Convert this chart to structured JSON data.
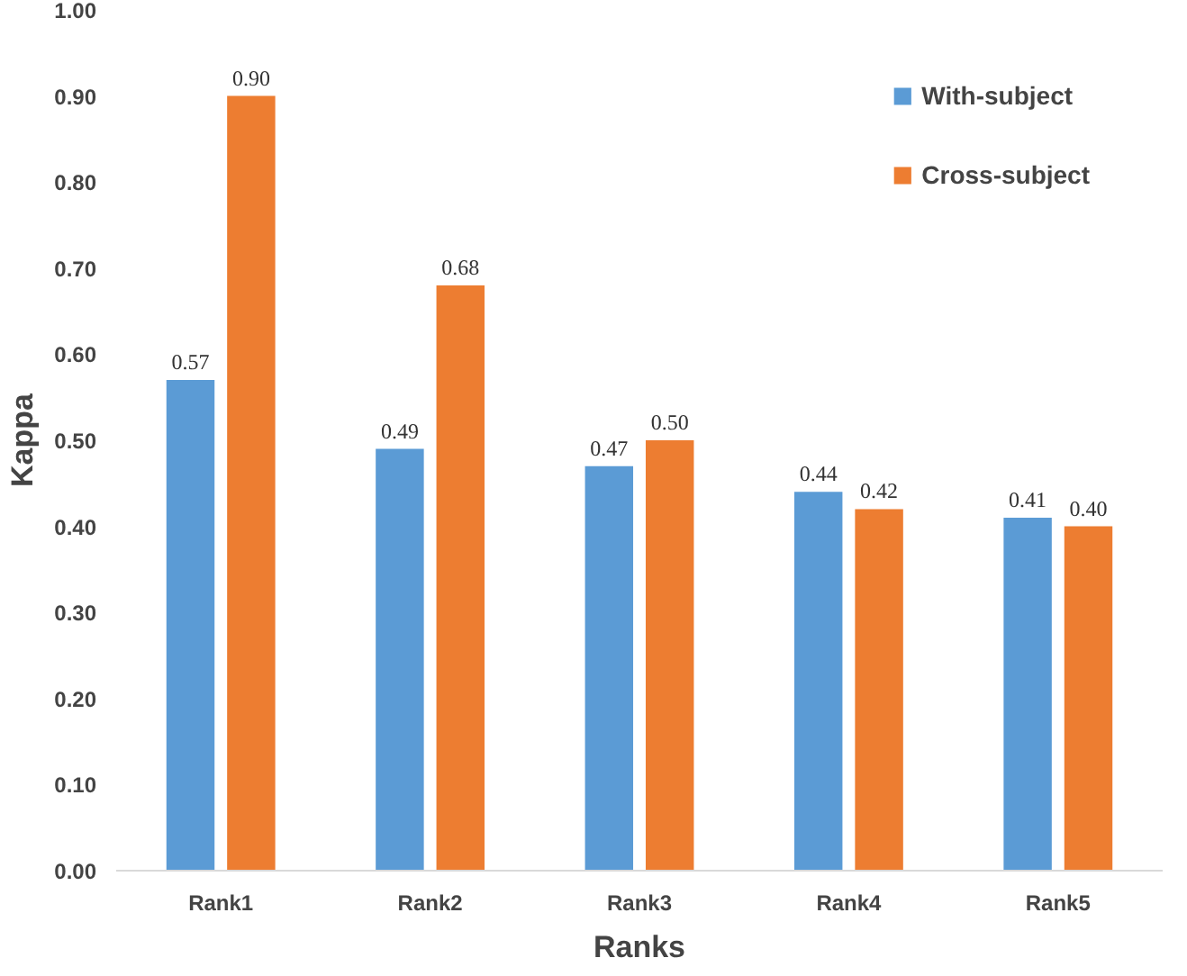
{
  "chart_data": {
    "type": "bar",
    "xlabel": "Ranks",
    "ylabel": "Kappa",
    "categories": [
      "Rank1",
      "Rank2",
      "Rank3",
      "Rank4",
      "Rank5"
    ],
    "series": [
      {
        "name": "With-subject",
        "color": "#5b9bd5",
        "values": [
          0.57,
          0.49,
          0.47,
          0.44,
          0.41
        ],
        "value_labels": [
          "0.57",
          "0.49",
          "0.47",
          "0.44",
          "0.41"
        ]
      },
      {
        "name": "Cross-subject",
        "color": "#ed7d31",
        "values": [
          0.9,
          0.68,
          0.5,
          0.42,
          0.4
        ],
        "value_labels": [
          "0.90",
          "0.68",
          "0.50",
          "0.42",
          "0.40"
        ]
      }
    ],
    "ylim": [
      0,
      1
    ],
    "yticks": [
      {
        "value": 0,
        "label": "0.00"
      },
      {
        "value": 0.1,
        "label": "0.10"
      },
      {
        "value": 0.2,
        "label": "0.20"
      },
      {
        "value": 0.3,
        "label": "0.30"
      },
      {
        "value": 0.4,
        "label": "0.40"
      },
      {
        "value": 0.5,
        "label": "0.50"
      },
      {
        "value": 0.6,
        "label": "0.60"
      },
      {
        "value": 0.7,
        "label": "0.70"
      },
      {
        "value": 0.8,
        "label": "0.80"
      },
      {
        "value": 0.9,
        "label": "0.90"
      },
      {
        "value": 1,
        "label": "1.00"
      }
    ],
    "legend": "top right",
    "grid": false
  }
}
